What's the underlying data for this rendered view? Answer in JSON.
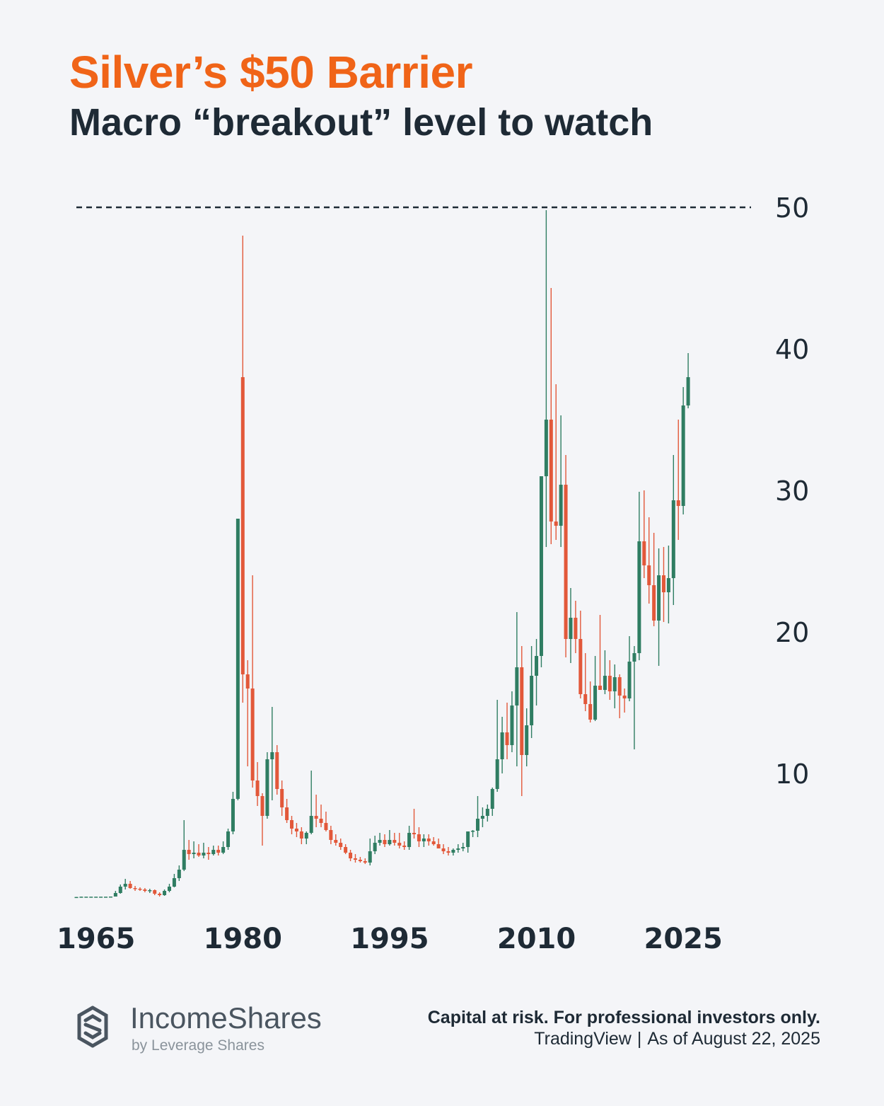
{
  "header": {
    "title": "Silver’s $50 Barrier",
    "subtitle": "Macro “breakout” level to watch"
  },
  "footer": {
    "brand": "IncomeShares",
    "brand_sub": "by Leverage Shares",
    "disclaimer": "Capital at risk. For professional investors only.",
    "source": "TradingView",
    "as_of": "As of August 22, 2025"
  },
  "colors": {
    "up": "#2f7d62",
    "down": "#e2583a",
    "title": "#f06418",
    "text": "#1e2a35"
  },
  "chart_data": {
    "type": "candlestick",
    "title": "Silver’s $50 Barrier",
    "xlabel": "",
    "ylabel": "",
    "ylim": [
      0,
      50
    ],
    "xlim": [
      1963,
      2026
    ],
    "x_ticks": [
      1965,
      1980,
      1995,
      2010,
      2025
    ],
    "y_ticks": [
      10,
      20,
      30,
      40,
      50
    ],
    "reference_line": {
      "y": 50
    },
    "grid": false,
    "candles": [
      [
        1963.0,
        1.25,
        1.27,
        1.25,
        1.27
      ],
      [
        1963.5,
        1.27,
        1.29,
        1.27,
        1.29
      ],
      [
        1964.0,
        1.29,
        1.29,
        1.29,
        1.29
      ],
      [
        1964.5,
        1.29,
        1.29,
        1.29,
        1.29
      ],
      [
        1965.0,
        1.29,
        1.29,
        1.29,
        1.29
      ],
      [
        1965.5,
        1.29,
        1.29,
        1.29,
        1.29
      ],
      [
        1966.0,
        1.29,
        1.29,
        1.29,
        1.29
      ],
      [
        1966.5,
        1.29,
        1.3,
        1.29,
        1.3
      ],
      [
        1967.0,
        1.3,
        1.7,
        1.3,
        1.55
      ],
      [
        1967.5,
        1.55,
        2.15,
        1.5,
        2.0
      ],
      [
        1968.0,
        2.0,
        2.55,
        1.8,
        2.2
      ],
      [
        1968.5,
        2.2,
        2.4,
        1.85,
        1.9
      ],
      [
        1969.0,
        1.9,
        2.05,
        1.7,
        1.85
      ],
      [
        1969.5,
        1.85,
        1.95,
        1.7,
        1.8
      ],
      [
        1970.0,
        1.8,
        1.9,
        1.6,
        1.7
      ],
      [
        1970.5,
        1.7,
        1.85,
        1.55,
        1.75
      ],
      [
        1971.0,
        1.75,
        1.8,
        1.4,
        1.5
      ],
      [
        1971.5,
        1.5,
        1.6,
        1.3,
        1.4
      ],
      [
        1972.0,
        1.4,
        1.8,
        1.35,
        1.7
      ],
      [
        1972.5,
        1.7,
        2.2,
        1.6,
        2.0
      ],
      [
        1973.0,
        2.0,
        2.9,
        1.95,
        2.6
      ],
      [
        1973.5,
        2.6,
        3.5,
        2.4,
        3.2
      ],
      [
        1974.0,
        3.2,
        6.7,
        3.1,
        4.6
      ],
      [
        1974.5,
        4.6,
        5.3,
        3.9,
        4.3
      ],
      [
        1975.0,
        4.3,
        5.2,
        4.0,
        4.4
      ],
      [
        1975.5,
        4.4,
        5.0,
        4.1,
        4.2
      ],
      [
        1976.0,
        4.2,
        5.1,
        4.0,
        4.4
      ],
      [
        1976.5,
        4.4,
        4.8,
        3.9,
        4.3
      ],
      [
        1977.0,
        4.3,
        4.9,
        4.2,
        4.6
      ],
      [
        1977.5,
        4.6,
        4.9,
        4.2,
        4.4
      ],
      [
        1978.0,
        4.4,
        5.2,
        4.3,
        4.8
      ],
      [
        1978.5,
        4.8,
        6.1,
        4.6,
        5.9
      ],
      [
        1979.0,
        5.9,
        8.7,
        5.7,
        8.2
      ],
      [
        1979.5,
        8.2,
        28.0,
        8.1,
        28.0
      ],
      [
        1980.0,
        38.0,
        48.0,
        15.0,
        17.0
      ],
      [
        1980.5,
        17.0,
        18.0,
        10.5,
        16.0
      ],
      [
        1981.0,
        16.0,
        24.0,
        9.0,
        9.5
      ],
      [
        1981.5,
        9.5,
        10.8,
        7.7,
        8.4
      ],
      [
        1982.0,
        8.4,
        8.6,
        4.9,
        7.0
      ],
      [
        1982.5,
        7.0,
        11.5,
        6.8,
        11.0
      ],
      [
        1983.0,
        11.0,
        14.7,
        8.1,
        11.5
      ],
      [
        1983.5,
        11.5,
        12.0,
        8.5,
        8.9
      ],
      [
        1984.0,
        8.9,
        9.5,
        7.0,
        7.6
      ],
      [
        1984.5,
        7.6,
        8.2,
        6.5,
        6.7
      ],
      [
        1985.0,
        6.7,
        7.0,
        5.7,
        6.1
      ],
      [
        1985.5,
        6.1,
        6.5,
        5.5,
        5.9
      ],
      [
        1986.0,
        5.9,
        6.2,
        5.0,
        5.4
      ],
      [
        1986.5,
        5.4,
        5.9,
        5.0,
        5.8
      ],
      [
        1987.0,
        5.8,
        10.2,
        5.7,
        7.0
      ],
      [
        1987.5,
        7.0,
        8.5,
        6.2,
        6.8
      ],
      [
        1988.0,
        6.8,
        7.8,
        6.2,
        6.5
      ],
      [
        1988.5,
        6.5,
        7.3,
        5.9,
        6.0
      ],
      [
        1989.0,
        6.0,
        6.3,
        5.0,
        5.3
      ],
      [
        1989.5,
        5.3,
        5.7,
        4.9,
        5.1
      ],
      [
        1990.0,
        5.1,
        5.4,
        4.6,
        4.8
      ],
      [
        1990.5,
        4.8,
        5.0,
        4.3,
        4.4
      ],
      [
        1991.0,
        4.4,
        4.6,
        3.8,
        4.0
      ],
      [
        1991.5,
        4.0,
        4.3,
        3.7,
        3.9
      ],
      [
        1992.0,
        3.9,
        4.1,
        3.7,
        3.8
      ],
      [
        1992.5,
        3.8,
        4.0,
        3.6,
        3.7
      ],
      [
        1993.0,
        3.7,
        5.4,
        3.5,
        4.5
      ],
      [
        1993.5,
        4.5,
        5.6,
        4.3,
        5.1
      ],
      [
        1994.0,
        5.1,
        5.8,
        4.9,
        5.3
      ],
      [
        1994.5,
        5.3,
        5.7,
        4.8,
        5.0
      ],
      [
        1995.0,
        5.0,
        6.0,
        4.9,
        5.3
      ],
      [
        1995.5,
        5.3,
        5.8,
        4.9,
        5.1
      ],
      [
        1996.0,
        5.1,
        5.8,
        4.7,
        4.9
      ],
      [
        1996.5,
        4.9,
        5.2,
        4.6,
        4.8
      ],
      [
        1997.0,
        4.8,
        6.3,
        4.6,
        5.8
      ],
      [
        1997.5,
        5.8,
        7.5,
        5.4,
        5.7
      ],
      [
        1998.0,
        5.7,
        6.2,
        4.8,
        5.2
      ],
      [
        1998.5,
        5.2,
        5.7,
        4.8,
        5.4
      ],
      [
        1999.0,
        5.4,
        5.7,
        4.9,
        5.2
      ],
      [
        1999.5,
        5.2,
        5.5,
        4.9,
        5.0
      ],
      [
        2000.0,
        5.0,
        5.4,
        4.7,
        4.7
      ],
      [
        2000.5,
        4.7,
        5.0,
        4.3,
        4.5
      ],
      [
        2001.0,
        4.5,
        4.8,
        4.2,
        4.4
      ],
      [
        2001.5,
        4.4,
        4.7,
        4.2,
        4.6
      ],
      [
        2002.0,
        4.6,
        5.0,
        4.4,
        4.7
      ],
      [
        2002.5,
        4.7,
        5.1,
        4.5,
        4.8
      ],
      [
        2003.0,
        4.8,
        5.4,
        4.4,
        5.9
      ],
      [
        2003.5,
        5.9,
        6.0,
        5.5,
        5.95
      ],
      [
        2004.0,
        5.95,
        8.4,
        5.5,
        6.8
      ],
      [
        2004.5,
        6.8,
        7.6,
        6.2,
        7.0
      ],
      [
        2005.0,
        7.0,
        7.8,
        6.6,
        7.5
      ],
      [
        2005.5,
        7.5,
        9.0,
        7.0,
        8.9
      ],
      [
        2006.0,
        8.9,
        15.2,
        8.7,
        11.0
      ],
      [
        2006.5,
        11.0,
        14.0,
        10.0,
        12.9
      ],
      [
        2007.0,
        12.9,
        15.0,
        11.0,
        12.0
      ],
      [
        2007.5,
        12.0,
        15.8,
        11.5,
        14.8
      ],
      [
        2008.0,
        14.8,
        21.4,
        10.5,
        17.5
      ],
      [
        2008.5,
        17.5,
        19.0,
        8.4,
        11.3
      ],
      [
        2009.0,
        11.3,
        14.6,
        10.5,
        13.4
      ],
      [
        2009.5,
        13.4,
        19.0,
        12.5,
        16.9
      ],
      [
        2010.0,
        16.9,
        19.5,
        14.8,
        18.3
      ],
      [
        2010.5,
        18.3,
        31.0,
        17.5,
        31.0
      ],
      [
        2011.0,
        31.0,
        49.8,
        26.0,
        35.0
      ],
      [
        2011.5,
        35.0,
        44.3,
        26.2,
        27.8
      ],
      [
        2012.0,
        27.8,
        37.5,
        26.5,
        27.5
      ],
      [
        2012.5,
        27.5,
        35.3,
        26.0,
        30.4
      ],
      [
        2013.0,
        30.4,
        32.5,
        18.2,
        19.5
      ],
      [
        2013.5,
        19.5,
        23.1,
        17.8,
        21.0
      ],
      [
        2014.0,
        21.0,
        22.2,
        18.5,
        19.5
      ],
      [
        2014.5,
        19.5,
        21.5,
        15.3,
        15.6
      ],
      [
        2015.0,
        15.6,
        18.5,
        14.4,
        14.9
      ],
      [
        2015.5,
        14.9,
        16.5,
        13.6,
        13.8
      ],
      [
        2016.0,
        13.8,
        18.3,
        13.7,
        16.2
      ],
      [
        2016.5,
        16.2,
        21.2,
        15.9,
        15.9
      ],
      [
        2017.0,
        15.9,
        18.7,
        15.6,
        16.9
      ],
      [
        2017.5,
        16.9,
        18.0,
        15.2,
        15.8
      ],
      [
        2018.0,
        15.8,
        17.7,
        14.6,
        16.8
      ],
      [
        2018.5,
        16.8,
        17.0,
        13.9,
        15.5
      ],
      [
        2019.0,
        15.5,
        16.0,
        14.3,
        15.3
      ],
      [
        2019.5,
        15.3,
        19.7,
        15.1,
        17.9
      ],
      [
        2020.0,
        17.9,
        19.0,
        11.7,
        18.5
      ],
      [
        2020.5,
        18.5,
        29.9,
        18.0,
        26.4
      ],
      [
        2021.0,
        26.4,
        30.0,
        23.8,
        24.7
      ],
      [
        2021.5,
        24.7,
        28.1,
        22.0,
        23.3
      ],
      [
        2022.0,
        23.3,
        27.0,
        20.4,
        20.8
      ],
      [
        2022.5,
        20.8,
        25.9,
        17.6,
        24.0
      ],
      [
        2023.0,
        24.0,
        26.0,
        20.7,
        22.8
      ],
      [
        2023.5,
        22.8,
        26.1,
        20.6,
        23.8
      ],
      [
        2024.0,
        23.8,
        32.5,
        21.9,
        29.3
      ],
      [
        2024.5,
        29.3,
        35.0,
        26.5,
        28.9
      ],
      [
        2025.0,
        28.9,
        37.3,
        28.3,
        36.0
      ],
      [
        2025.5,
        36.0,
        39.7,
        35.8,
        38.0
      ]
    ]
  }
}
